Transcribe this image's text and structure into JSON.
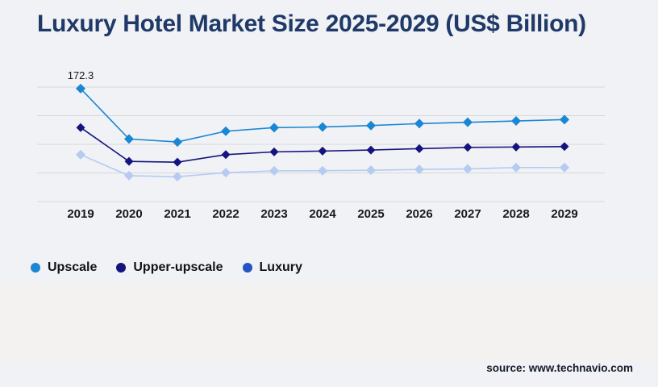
{
  "page": {
    "title": "Luxury Hotel Market Size 2025-2029 (US$ Billion)",
    "source": "source: www.technavio.com",
    "background_color": "#f1f2f5",
    "title_color": "#1f3a68"
  },
  "chart_data": {
    "type": "line",
    "title": "Luxury Hotel Market Size 2025-2029 (US$ Billion)",
    "categories": [
      "2019",
      "2020",
      "2021",
      "2022",
      "2023",
      "2024",
      "2025",
      "2026",
      "2027",
      "2028",
      "2029"
    ],
    "series": [
      {
        "name": "Upscale",
        "color": "#1b86d3",
        "line_color": "#1b86d3",
        "values": [
          172.3,
          84.3,
          79.1,
          97.9,
          104.1,
          105.3,
          107.8,
          111.2,
          113.5,
          115.8,
          118.2
        ]
      },
      {
        "name": "Upper-upscale",
        "color": "#15137e",
        "line_color": "#15137e",
        "values": [
          104.3,
          45.2,
          43.8,
          57.0,
          61.8,
          63.2,
          65.0,
          67.4,
          69.7,
          70.3,
          71.1
        ]
      },
      {
        "name": "Luxury",
        "color": "#2353c4",
        "line_color": "#b5cbf2",
        "values": [
          56.8,
          20.2,
          18.4,
          25.5,
          28.7,
          28.9,
          29.7,
          31.1,
          32.1,
          34.4,
          34.5
        ]
      }
    ],
    "annotations": [
      {
        "series": "Upscale",
        "category": "2019",
        "text": "172.3"
      }
    ],
    "marker": "diamond",
    "xlabel": "",
    "ylabel": "",
    "ylim": [
      -25,
      175
    ],
    "gridline_step": 50,
    "grid": "horizontal-only",
    "y_axis_labels_visible": false,
    "legend_position": "bottom-left",
    "gridline_color": "#d8d8db",
    "axis_label_color": "#15191e"
  }
}
